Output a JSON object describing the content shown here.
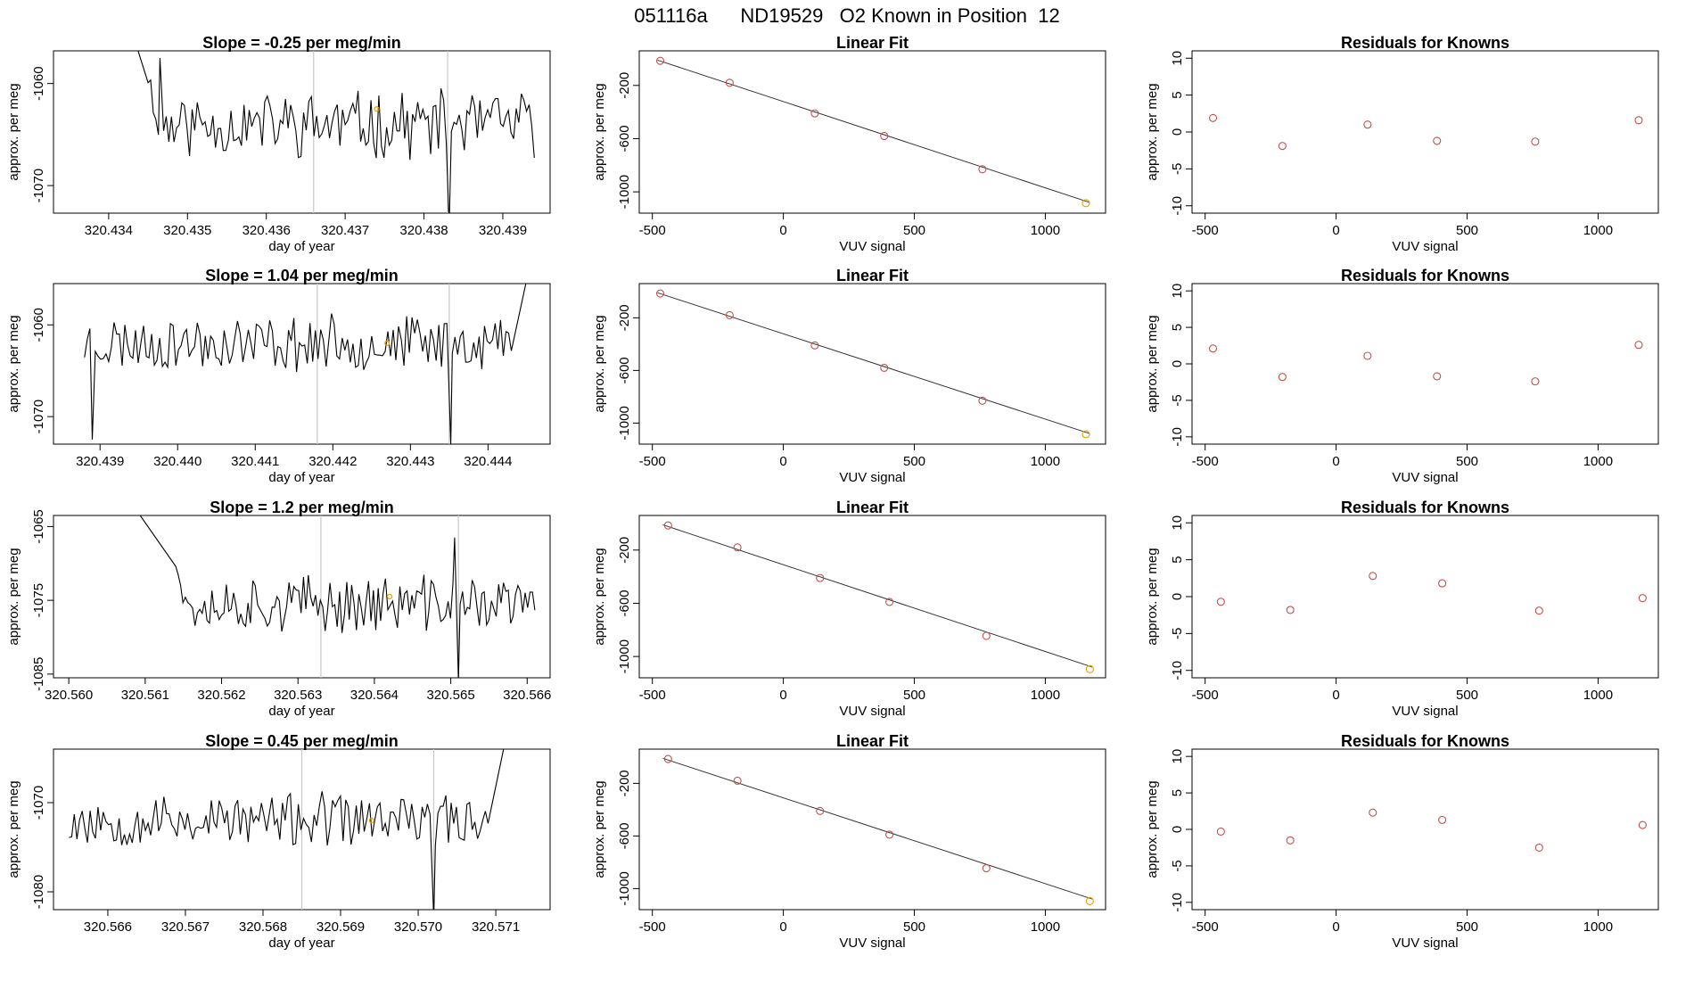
{
  "figure": {
    "title": "051116a      ND19529   O2 Known in Position  12",
    "colors": {
      "trace": "#000000",
      "fit_line": "#333333",
      "known_point": "#c0504d",
      "highlight_point": "#e69f00",
      "marker_line": "#c8c8c8",
      "frame": "#000000"
    }
  },
  "chart_data": [
    {
      "type": "line",
      "row": 1,
      "title": "Slope =  -0.25  per meg/min",
      "xlabel": "day of year",
      "ylabel": "approx. per meg",
      "xlim": [
        320.4333,
        320.4396
      ],
      "ylim": [
        -1072.7,
        -1056.8
      ],
      "xticks": [
        320.434,
        320.435,
        320.436,
        320.437,
        320.438,
        320.439
      ],
      "xtick_labels": [
        "320.434",
        "320.435",
        "320.436",
        "320.437",
        "320.438",
        "320.439"
      ],
      "yticks": [
        -1060,
        -1070
      ],
      "ytick_labels": [
        "-1060",
        "-1070"
      ],
      "vlines": [
        320.4366,
        320.4383
      ],
      "highlight": {
        "x": 320.4374,
        "y": -1062.5
      },
      "gen": {
        "start": 320.4345,
        "end": 320.4394,
        "n": 150,
        "base": -1064,
        "amp": 2.8,
        "seed": 11,
        "spikes": [
          [
            320.43465,
            -1057.5
          ]
        ],
        "drops": [
          [
            320.43832,
            -1074
          ]
        ],
        "head": {
          "from": 320.4343,
          "to": 320.4345,
          "y0": -1055
        }
      }
    },
    {
      "type": "line",
      "row": 2,
      "title": "Slope =  1.04  per meg/min",
      "xlabel": "day of year",
      "ylabel": "approx. per meg",
      "xlim": [
        320.4384,
        320.4448
      ],
      "ylim": [
        -1073,
        -1055.5
      ],
      "xticks": [
        320.439,
        320.44,
        320.441,
        320.442,
        320.443,
        320.444
      ],
      "xtick_labels": [
        "320.439",
        "320.440",
        "320.441",
        "320.442",
        "320.443",
        "320.444"
      ],
      "yticks": [
        -1060,
        -1070
      ],
      "ytick_labels": [
        "-1060",
        "-1070"
      ],
      "vlines": [
        320.4418,
        320.4435
      ],
      "highlight": {
        "x": 320.4427,
        "y": -1062
      },
      "gen": {
        "start": 320.4388,
        "end": 320.4443,
        "n": 160,
        "base": -1062,
        "amp": 2.6,
        "seed": 23,
        "spikes": [],
        "drops": [
          [
            320.4389,
            -1072.5
          ],
          [
            320.44352,
            -1073
          ]
        ],
        "tail": {
          "from": 320.4443,
          "to": 320.4445,
          "y1": -1055
        }
      }
    },
    {
      "type": "line",
      "row": 3,
      "title": "Slope =  1.2  per meg/min",
      "xlabel": "day of year",
      "ylabel": "approx. per meg",
      "xlim": [
        320.5598,
        320.5663
      ],
      "ylim": [
        -1085.5,
        -1063.5
      ],
      "xticks": [
        320.56,
        320.561,
        320.562,
        320.563,
        320.564,
        320.565,
        320.566
      ],
      "xtick_labels": [
        "320.560",
        "320.561",
        "320.562",
        "320.563",
        "320.564",
        "320.565",
        "320.566"
      ],
      "yticks": [
        -1065,
        -1075,
        -1085
      ],
      "ytick_labels": [
        "-1065",
        "-1075",
        "-1085"
      ],
      "vlines": [
        320.5633,
        320.5651
      ],
      "highlight": {
        "x": 320.5642,
        "y": -1074.5
      },
      "gen": {
        "start": 320.5614,
        "end": 320.5661,
        "n": 150,
        "base": -1075.5,
        "amp": 3.3,
        "seed": 37,
        "spikes": [
          [
            320.56505,
            -1066.5
          ]
        ],
        "drops": [
          [
            320.5651,
            -1086
          ]
        ],
        "head": {
          "from": 320.5609,
          "to": 320.5614,
          "y0": -1063
        }
      }
    },
    {
      "type": "line",
      "row": 4,
      "title": "Slope =  0.45  per meg/min",
      "xlabel": "day of year",
      "ylabel": "approx. per meg",
      "xlim": [
        320.5653,
        320.5717
      ],
      "ylim": [
        -1082,
        -1064
      ],
      "xticks": [
        320.566,
        320.567,
        320.568,
        320.569,
        320.57,
        320.571
      ],
      "xtick_labels": [
        "320.566",
        "320.567",
        "320.568",
        "320.569",
        "320.570",
        "320.571"
      ],
      "yticks": [
        -1070,
        -1080
      ],
      "ytick_labels": [
        "-1070",
        "-1080"
      ],
      "vlines": [
        320.5685,
        320.5702
      ],
      "highlight": {
        "x": 320.5694,
        "y": -1072
      },
      "gen": {
        "start": 320.5655,
        "end": 320.5709,
        "n": 160,
        "base": -1072,
        "amp": 2.6,
        "seed": 53,
        "spikes": [],
        "drops": [
          [
            320.5702,
            -1083
          ]
        ],
        "tail": {
          "from": 320.5709,
          "to": 320.5711,
          "y1": -1064
        }
      }
    },
    {
      "type": "scatter",
      "row": 1,
      "title": "Linear Fit",
      "xlabel": "VUV signal",
      "ylabel": "approx. per meg",
      "xlim": [
        -550,
        1230
      ],
      "ylim": [
        -1160,
        60
      ],
      "xticks": [
        -500,
        0,
        500,
        1000
      ],
      "xtick_labels": [
        "-500",
        "0",
        "500",
        "1000"
      ],
      "yticks": [
        -200,
        -600,
        -1000
      ],
      "ytick_labels": [
        "-200",
        "-600",
        "-1000"
      ],
      "fit_line": {
        "x": [
          -480,
          1170
        ],
        "y": [
          -10,
          -1080
        ]
      },
      "points": [
        {
          "x": -470,
          "y": -15,
          "c": "known"
        },
        {
          "x": -205,
          "y": -180,
          "c": "known"
        },
        {
          "x": 120,
          "y": -410,
          "c": "known"
        },
        {
          "x": 385,
          "y": -580,
          "c": "known"
        },
        {
          "x": 760,
          "y": -830,
          "c": "known"
        },
        {
          "x": 1155,
          "y": -1085,
          "c": "highlight"
        }
      ]
    },
    {
      "type": "scatter",
      "row": 2,
      "title": "Linear Fit",
      "xlabel": "VUV signal",
      "ylabel": "approx. per meg",
      "xlim": [
        -550,
        1230
      ],
      "ylim": [
        -1160,
        60
      ],
      "xticks": [
        -500,
        0,
        500,
        1000
      ],
      "xtick_labels": [
        "-500",
        "0",
        "500",
        "1000"
      ],
      "yticks": [
        -200,
        -600,
        -1000
      ],
      "ytick_labels": [
        "-200",
        "-600",
        "-1000"
      ],
      "fit_line": {
        "x": [
          -480,
          1170
        ],
        "y": [
          -10,
          -1080
        ]
      },
      "points": [
        {
          "x": -470,
          "y": -15,
          "c": "known"
        },
        {
          "x": -205,
          "y": -180,
          "c": "known"
        },
        {
          "x": 120,
          "y": -410,
          "c": "known"
        },
        {
          "x": 385,
          "y": -580,
          "c": "known"
        },
        {
          "x": 760,
          "y": -830,
          "c": "known"
        },
        {
          "x": 1155,
          "y": -1085,
          "c": "highlight"
        }
      ]
    },
    {
      "type": "scatter",
      "row": 3,
      "title": "Linear Fit",
      "xlabel": "VUV signal",
      "ylabel": "approx. per meg",
      "xlim": [
        -550,
        1230
      ],
      "ylim": [
        -1160,
        60
      ],
      "xticks": [
        -500,
        0,
        500,
        1000
      ],
      "xtick_labels": [
        "-500",
        "0",
        "500",
        "1000"
      ],
      "yticks": [
        -200,
        -600,
        -1000
      ],
      "ytick_labels": [
        "-200",
        "-600",
        "-1000"
      ],
      "fit_line": {
        "x": [
          -460,
          1180
        ],
        "y": [
          -10,
          -1080
        ]
      },
      "points": [
        {
          "x": -440,
          "y": -15,
          "c": "known"
        },
        {
          "x": -175,
          "y": -180,
          "c": "known"
        },
        {
          "x": 140,
          "y": -410,
          "c": "known"
        },
        {
          "x": 405,
          "y": -590,
          "c": "known"
        },
        {
          "x": 775,
          "y": -845,
          "c": "known"
        },
        {
          "x": 1170,
          "y": -1095,
          "c": "highlight"
        }
      ]
    },
    {
      "type": "scatter",
      "row": 4,
      "title": "Linear Fit",
      "xlabel": "VUV signal",
      "ylabel": "approx. per meg",
      "xlim": [
        -550,
        1230
      ],
      "ylim": [
        -1160,
        60
      ],
      "xticks": [
        -500,
        0,
        500,
        1000
      ],
      "xtick_labels": [
        "-500",
        "0",
        "500",
        "1000"
      ],
      "yticks": [
        -200,
        -600,
        -1000
      ],
      "ytick_labels": [
        "-200",
        "-600",
        "-1000"
      ],
      "fit_line": {
        "x": [
          -460,
          1180
        ],
        "y": [
          -10,
          -1080
        ]
      },
      "points": [
        {
          "x": -440,
          "y": -15,
          "c": "known"
        },
        {
          "x": -175,
          "y": -180,
          "c": "known"
        },
        {
          "x": 140,
          "y": -410,
          "c": "known"
        },
        {
          "x": 405,
          "y": -590,
          "c": "known"
        },
        {
          "x": 775,
          "y": -845,
          "c": "known"
        },
        {
          "x": 1170,
          "y": -1095,
          "c": "highlight"
        }
      ]
    },
    {
      "type": "scatter",
      "row": 1,
      "title": "Residuals for Knowns",
      "xlabel": "VUV signal",
      "ylabel": "approx. per meg",
      "xlim": [
        -550,
        1230
      ],
      "ylim": [
        -11,
        11
      ],
      "xticks": [
        -500,
        0,
        500,
        1000
      ],
      "xtick_labels": [
        "-500",
        "0",
        "500",
        "1000"
      ],
      "yticks": [
        10,
        5,
        0,
        -5,
        -10
      ],
      "ytick_labels": [
        "10",
        "5",
        "0",
        "-5",
        "-10"
      ],
      "points": [
        {
          "x": -470,
          "y": 1.9
        },
        {
          "x": -205,
          "y": -1.9
        },
        {
          "x": 120,
          "y": 1.0
        },
        {
          "x": 385,
          "y": -1.2
        },
        {
          "x": 760,
          "y": -1.3
        },
        {
          "x": 1155,
          "y": 1.6
        }
      ]
    },
    {
      "type": "scatter",
      "row": 2,
      "title": "Residuals for Knowns",
      "xlabel": "VUV signal",
      "ylabel": "approx. per meg",
      "xlim": [
        -550,
        1230
      ],
      "ylim": [
        -11,
        11
      ],
      "xticks": [
        -500,
        0,
        500,
        1000
      ],
      "xtick_labels": [
        "-500",
        "0",
        "500",
        "1000"
      ],
      "yticks": [
        10,
        5,
        0,
        -5,
        -10
      ],
      "ytick_labels": [
        "10",
        "5",
        "0",
        "-5",
        "-10"
      ],
      "points": [
        {
          "x": -470,
          "y": 2.1
        },
        {
          "x": -205,
          "y": -1.8
        },
        {
          "x": 120,
          "y": 1.1
        },
        {
          "x": 385,
          "y": -1.7
        },
        {
          "x": 760,
          "y": -2.4
        },
        {
          "x": 1155,
          "y": 2.6
        }
      ]
    },
    {
      "type": "scatter",
      "row": 3,
      "title": "Residuals for Knowns",
      "xlabel": "VUV signal",
      "ylabel": "approx. per meg",
      "xlim": [
        -550,
        1230
      ],
      "ylim": [
        -11,
        11
      ],
      "xticks": [
        -500,
        0,
        500,
        1000
      ],
      "xtick_labels": [
        "-500",
        "0",
        "500",
        "1000"
      ],
      "yticks": [
        10,
        5,
        0,
        -5,
        -10
      ],
      "ytick_labels": [
        "10",
        "5",
        "0",
        "-5",
        "-10"
      ],
      "points": [
        {
          "x": -440,
          "y": -0.7
        },
        {
          "x": -175,
          "y": -1.8
        },
        {
          "x": 140,
          "y": 2.8
        },
        {
          "x": 405,
          "y": 1.8
        },
        {
          "x": 775,
          "y": -1.9
        },
        {
          "x": 1170,
          "y": -0.2
        }
      ]
    },
    {
      "type": "scatter",
      "row": 4,
      "title": "Residuals for Knowns",
      "xlabel": "VUV signal",
      "ylabel": "approx. per meg",
      "xlim": [
        -550,
        1230
      ],
      "ylim": [
        -11,
        11
      ],
      "xticks": [
        -500,
        0,
        500,
        1000
      ],
      "xtick_labels": [
        "-500",
        "0",
        "500",
        "1000"
      ],
      "yticks": [
        10,
        5,
        0,
        -5,
        -10
      ],
      "ytick_labels": [
        "10",
        "5",
        "0",
        "-5",
        "-10"
      ],
      "points": [
        {
          "x": -440,
          "y": -0.3
        },
        {
          "x": -175,
          "y": -1.5
        },
        {
          "x": 140,
          "y": 2.3
        },
        {
          "x": 405,
          "y": 1.3
        },
        {
          "x": 775,
          "y": -2.5
        },
        {
          "x": 1170,
          "y": 0.6
        }
      ]
    }
  ]
}
